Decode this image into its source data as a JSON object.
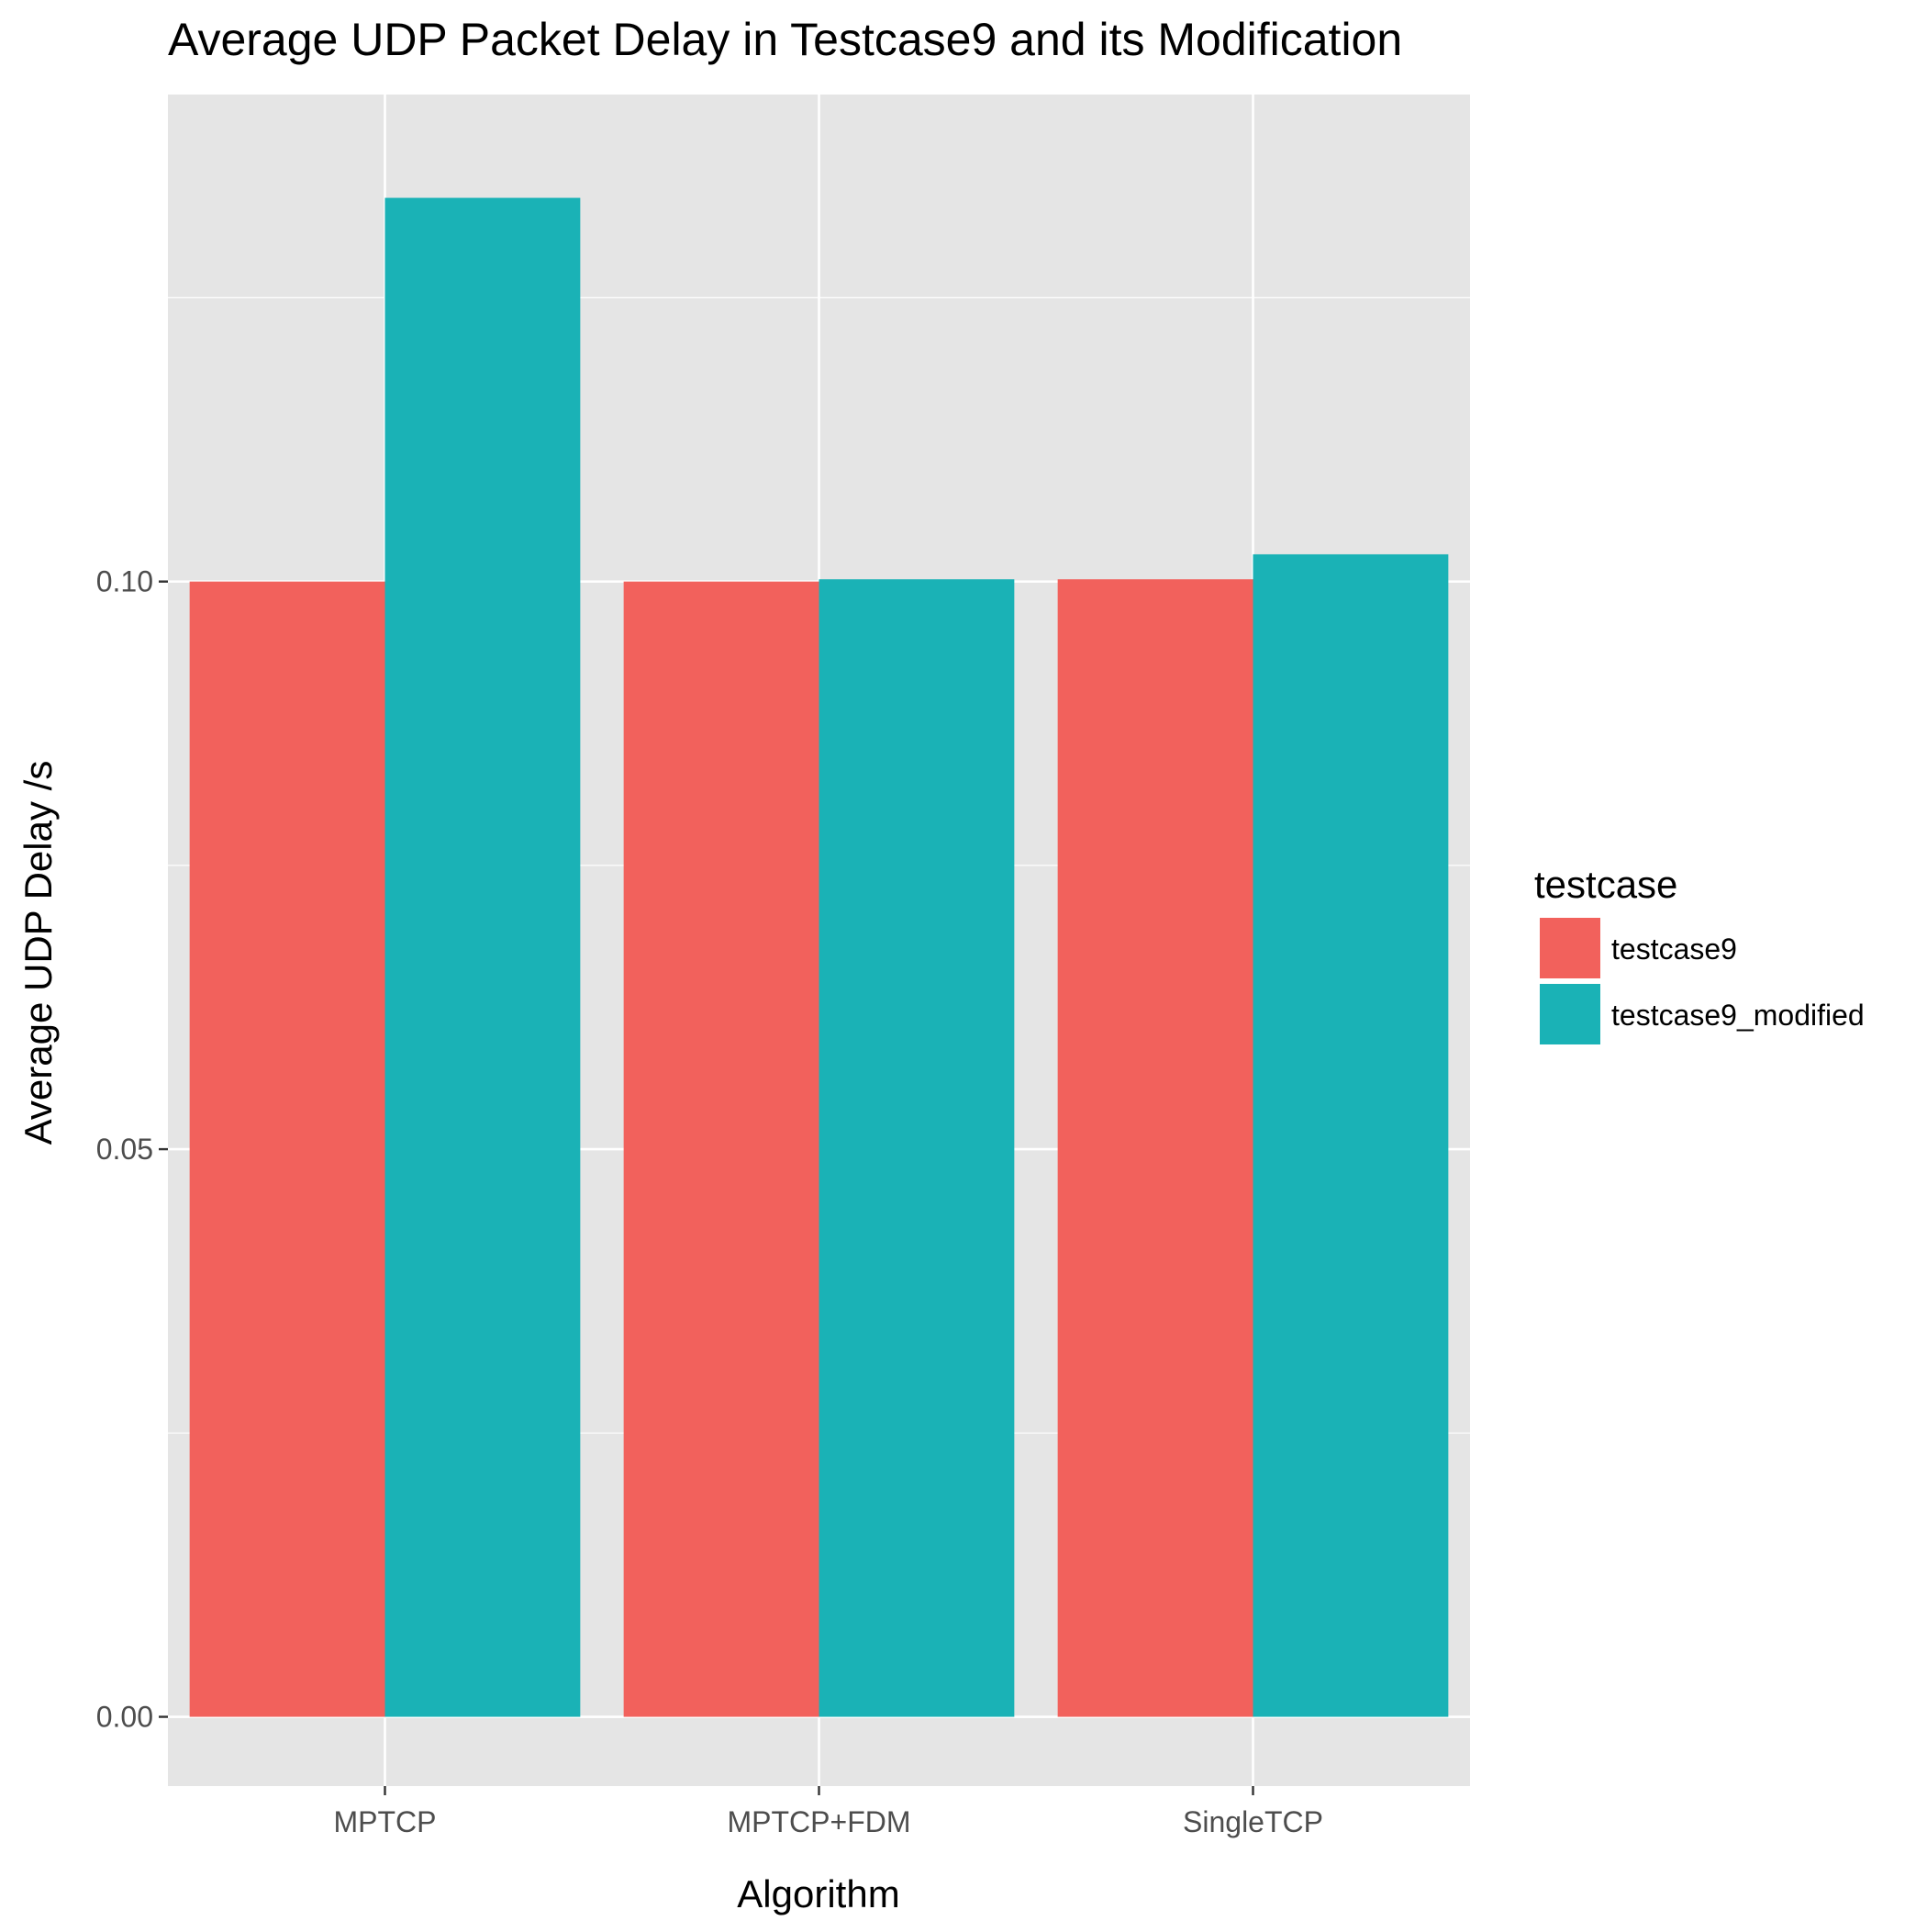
{
  "chart_data": {
    "type": "bar",
    "title": "Average UDP Packet Delay in Testcase9 and its Modification",
    "xlabel": "Algorithm",
    "ylabel": "Average UDP Delay /s",
    "categories": [
      "MPTCP",
      "MPTCP+FDM",
      "SingleTCP"
    ],
    "series": [
      {
        "name": "testcase9",
        "color": "#F2615C",
        "values": [
          0.1,
          0.1,
          0.1002
        ]
      },
      {
        "name": "testcase9_modified",
        "color": "#1AB2B6",
        "values": [
          0.1338,
          0.1002,
          0.1024
        ]
      }
    ],
    "ylim": [
      -0.0061,
      0.1429
    ],
    "yticks": [
      0.0,
      0.05,
      0.1
    ],
    "ytick_labels": [
      "0.00",
      "0.05",
      "0.10"
    ],
    "y_minor_ticks": [
      0.025,
      0.075,
      0.125
    ],
    "grid": true,
    "legend": {
      "title": "testcase",
      "position": "right"
    },
    "colors": {
      "panel_background": "#E5E5E5",
      "grid": "#FFFFFF",
      "text": "#000000",
      "tick_text": "#4D4D4D",
      "tick_mark": "#333333"
    }
  }
}
